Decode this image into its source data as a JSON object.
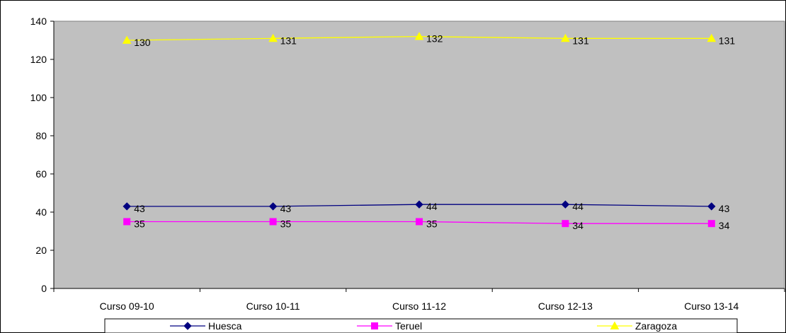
{
  "chart_data": {
    "type": "line",
    "title": "",
    "xlabel": "",
    "ylabel": "",
    "categories": [
      "Curso 09-10",
      "Curso 10-11",
      "Curso 11-12",
      "Curso 12-13",
      "Curso 13-14"
    ],
    "ylim": [
      0,
      140
    ],
    "yticks": [
      "0",
      "20",
      "40",
      "60",
      "80",
      "100",
      "120",
      "140"
    ],
    "grid": false,
    "legend_position": "bottom",
    "plot_background": "#c0c0c0",
    "series": [
      {
        "name": "Huesca",
        "values": [
          43,
          43,
          44,
          44,
          43
        ],
        "labels": [
          "43",
          "43",
          "44",
          "44",
          "43"
        ],
        "color": "#000080",
        "marker": "diamond"
      },
      {
        "name": "Teruel",
        "values": [
          35,
          35,
          35,
          34,
          34
        ],
        "labels": [
          "35",
          "35",
          "35",
          "34",
          "34"
        ],
        "color": "#ff00ff",
        "marker": "square"
      },
      {
        "name": "Zaragoza",
        "values": [
          130,
          131,
          132,
          131,
          131
        ],
        "labels": [
          "130",
          "131",
          "132",
          "131",
          "131"
        ],
        "color": "#ffff00",
        "marker": "triangle"
      }
    ]
  }
}
